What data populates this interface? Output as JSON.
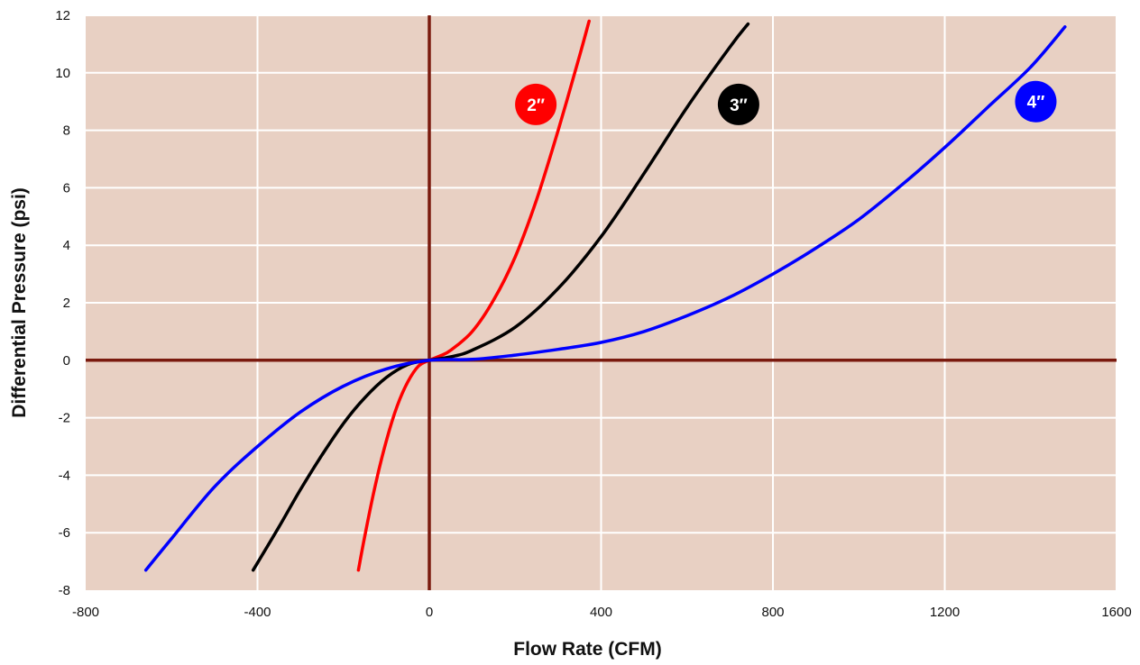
{
  "chart_data": {
    "type": "line",
    "xlabel": "Flow Rate (CFM)",
    "ylabel": "Differential Pressure (psi)",
    "xlim": [
      -800,
      1600
    ],
    "ylim": [
      -8,
      12
    ],
    "x_ticks": [
      -800,
      -400,
      0,
      400,
      800,
      1200,
      1600
    ],
    "y_ticks": [
      -8,
      -6,
      -4,
      -2,
      0,
      2,
      4,
      6,
      8,
      10,
      12
    ],
    "x_tick_labels": [
      "-800",
      "-400",
      "0",
      "400",
      "800",
      "1200",
      "1600"
    ],
    "y_tick_labels": [
      "-8",
      "-6",
      "-4",
      "-2",
      "0",
      "2",
      "4",
      "6",
      "8",
      "10",
      "12"
    ],
    "grid": true,
    "background_color": "#E8D0C3",
    "grid_color": "#FFFFFF",
    "axis_color": "#7A1A0E",
    "series": [
      {
        "name": "2″",
        "color": "#FF0000",
        "points": [
          [
            -165,
            -7.3
          ],
          [
            -150,
            -6.1
          ],
          [
            -125,
            -4.3
          ],
          [
            -100,
            -2.8
          ],
          [
            -75,
            -1.6
          ],
          [
            -50,
            -0.75
          ],
          [
            -25,
            -0.2
          ],
          [
            0,
            0
          ],
          [
            25,
            0.15
          ],
          [
            50,
            0.35
          ],
          [
            100,
            1.0
          ],
          [
            150,
            2.1
          ],
          [
            200,
            3.6
          ],
          [
            250,
            5.6
          ],
          [
            300,
            8.0
          ],
          [
            350,
            10.6
          ],
          [
            372,
            11.8
          ]
        ],
        "label_pos": [
          248,
          8.9
        ]
      },
      {
        "name": "3″",
        "color": "#000000",
        "points": [
          [
            -410,
            -7.3
          ],
          [
            -350,
            -5.8
          ],
          [
            -300,
            -4.5
          ],
          [
            -250,
            -3.3
          ],
          [
            -200,
            -2.2
          ],
          [
            -150,
            -1.3
          ],
          [
            -100,
            -0.6
          ],
          [
            -50,
            -0.15
          ],
          [
            0,
            0
          ],
          [
            50,
            0.12
          ],
          [
            100,
            0.35
          ],
          [
            200,
            1.15
          ],
          [
            300,
            2.5
          ],
          [
            400,
            4.3
          ],
          [
            500,
            6.5
          ],
          [
            600,
            8.8
          ],
          [
            700,
            10.9
          ],
          [
            742,
            11.7
          ]
        ],
        "label_pos": [
          720,
          8.9
        ]
      },
      {
        "name": "4″",
        "color": "#0000FF",
        "points": [
          [
            -660,
            -7.3
          ],
          [
            -600,
            -6.2
          ],
          [
            -500,
            -4.4
          ],
          [
            -400,
            -3.0
          ],
          [
            -300,
            -1.8
          ],
          [
            -200,
            -0.9
          ],
          [
            -100,
            -0.3
          ],
          [
            0,
            0
          ],
          [
            100,
            0.03
          ],
          [
            200,
            0.18
          ],
          [
            300,
            0.38
          ],
          [
            400,
            0.62
          ],
          [
            500,
            1.0
          ],
          [
            600,
            1.55
          ],
          [
            700,
            2.2
          ],
          [
            800,
            3.0
          ],
          [
            900,
            3.9
          ],
          [
            1000,
            4.9
          ],
          [
            1100,
            6.1
          ],
          [
            1200,
            7.4
          ],
          [
            1300,
            8.8
          ],
          [
            1400,
            10.2
          ],
          [
            1480,
            11.6
          ]
        ],
        "label_pos": [
          1412,
          9.0
        ]
      }
    ]
  }
}
